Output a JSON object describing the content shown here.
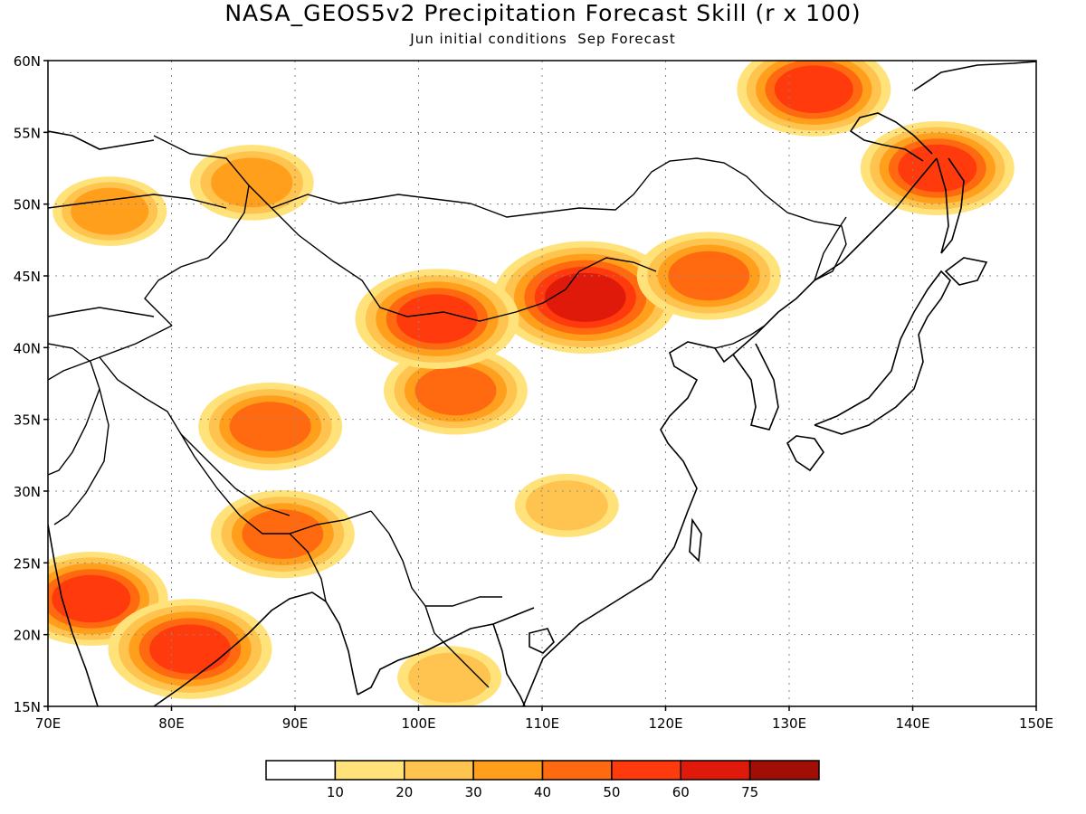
{
  "title": "NASA_GEOS5v2 Precipitation Forecast Skill (r x 100)",
  "subtitle": "Jun initial conditions  Sep Forecast",
  "chart_data": {
    "type": "heatmap",
    "title": "NASA_GEOS5v2 Precipitation Forecast Skill (r x 100)",
    "subtitle": "Jun initial conditions  Sep Forecast",
    "xlim": [
      70,
      150
    ],
    "ylim": [
      15,
      60
    ],
    "x_ticks": [
      "70E",
      "80E",
      "90E",
      "100E",
      "110E",
      "120E",
      "130E",
      "140E",
      "150E"
    ],
    "y_ticks": [
      "15N",
      "20N",
      "25N",
      "30N",
      "35N",
      "40N",
      "45N",
      "50N",
      "55N",
      "60N"
    ],
    "grid": true,
    "legend": {
      "placement": "bottom",
      "labels": [
        "10",
        "20",
        "30",
        "40",
        "50",
        "60",
        "75"
      ],
      "colors": [
        "#ffffff",
        "#ffe37a",
        "#ffc34f",
        "#ff9f1c",
        "#ff6a10",
        "#ff3a0d",
        "#e01a0a",
        "#a00e06"
      ]
    },
    "regions": [
      {
        "name": "north-china-mongolia",
        "lon": 113.5,
        "lat": 43.5,
        "peak": 65
      },
      {
        "name": "northeast-china",
        "lon": 123.5,
        "lat": 45,
        "peak": 45
      },
      {
        "name": "far-east-north",
        "lon": 132,
        "lat": 58,
        "peak": 50
      },
      {
        "name": "tibet-plateau",
        "lon": 88,
        "lat": 34.5,
        "peak": 45
      },
      {
        "name": "himalaya-east",
        "lon": 89,
        "lat": 27,
        "peak": 45
      },
      {
        "name": "india-west",
        "lon": 73.5,
        "lat": 22.5,
        "peak": 50
      },
      {
        "name": "bay-of-bengal",
        "lon": 81.5,
        "lat": 19,
        "peak": 55
      },
      {
        "name": "central-china",
        "lon": 103,
        "lat": 37,
        "peak": 45
      },
      {
        "name": "gansu-north",
        "lon": 101.5,
        "lat": 42,
        "peak": 55
      },
      {
        "name": "south-siberia",
        "lon": 86.5,
        "lat": 51.5,
        "peak": 35
      },
      {
        "name": "kazakhstan-north",
        "lon": 75,
        "lat": 49.5,
        "peak": 30
      },
      {
        "name": "sakhalin",
        "lon": 142,
        "lat": 52.5,
        "peak": 50
      },
      {
        "name": "indochina",
        "lon": 102.5,
        "lat": 17,
        "peak": 25
      },
      {
        "name": "south-china",
        "lon": 112,
        "lat": 29,
        "peak": 25
      }
    ]
  }
}
